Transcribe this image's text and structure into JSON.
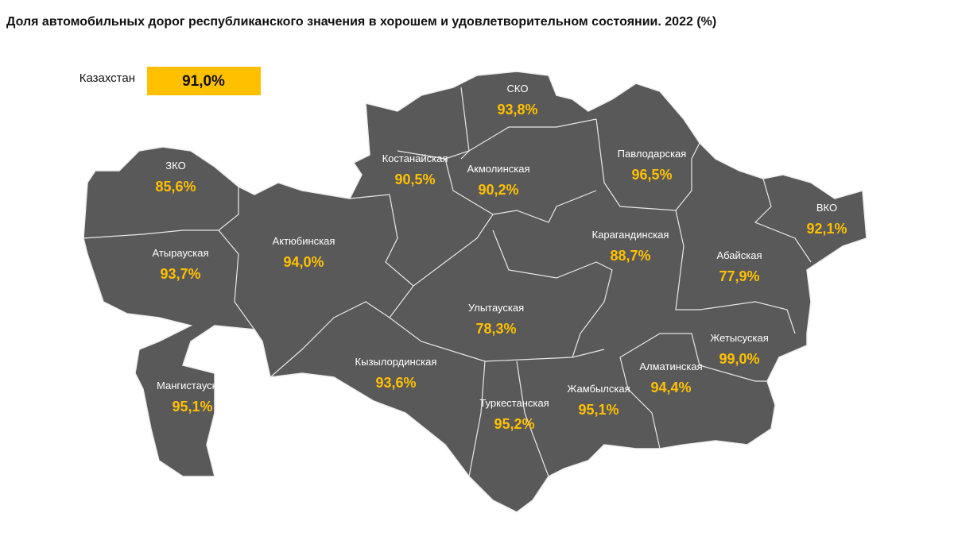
{
  "title": "Доля автомобильных дорог республиканского значения в хорошем и удовлетворительном состоянии. 2022 (%)",
  "summary": {
    "name": "Казахстан",
    "value": "91,0%"
  },
  "regions": [
    {
      "name": "СКО",
      "value": "93,8%"
    },
    {
      "name": "Костанайская",
      "value": "90,5%"
    },
    {
      "name": "Акмолинская",
      "value": "90,2%"
    },
    {
      "name": "Павлодарская",
      "value": "96,5%"
    },
    {
      "name": "ЗКО",
      "value": "85,6%"
    },
    {
      "name": "ВКО",
      "value": "92,1%"
    },
    {
      "name": "Актюбинская",
      "value": "94,0%"
    },
    {
      "name": "Карагандинская",
      "value": "88,7%"
    },
    {
      "name": "Атырауская",
      "value": "93,7%"
    },
    {
      "name": "Абайская",
      "value": "77,9%"
    },
    {
      "name": "Улытауская",
      "value": "78,3%"
    },
    {
      "name": "Жетысуская",
      "value": "99,0%"
    },
    {
      "name": "Кызылординская",
      "value": "93,6%"
    },
    {
      "name": "Алматинская",
      "value": "94,4%"
    },
    {
      "name": "Мангистауская",
      "value": "95,1%"
    },
    {
      "name": "Жамбылская",
      "value": "95,1%"
    },
    {
      "name": "Туркестанская",
      "value": "95,2%"
    }
  ]
}
